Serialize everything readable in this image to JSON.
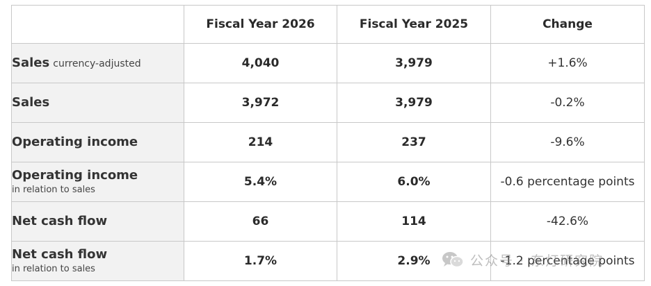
{
  "table": {
    "headers": [
      "",
      "Fiscal Year 2026",
      "Fiscal Year 2025",
      "Change"
    ],
    "rows": [
      {
        "label": "Sales",
        "inline_note": "currency-adjusted",
        "sub": "",
        "fy2026": "4,040",
        "fy2025": "3,979",
        "change": "+1.6%"
      },
      {
        "label": "Sales",
        "inline_note": "",
        "sub": "",
        "fy2026": "3,972",
        "fy2025": "3,979",
        "change": "-0.2%"
      },
      {
        "label": "Operating income",
        "inline_note": "",
        "sub": "",
        "fy2026": "214",
        "fy2025": "237",
        "change": "-9.6%"
      },
      {
        "label": "Operating income",
        "inline_note": "",
        "sub": "in relation to sales",
        "fy2026": "5.4%",
        "fy2025": "6.0%",
        "change": "-0.6 percentage points"
      },
      {
        "label": "Net cash flow",
        "inline_note": "",
        "sub": "",
        "fy2026": "66",
        "fy2025": "114",
        "change": "-42.6%"
      },
      {
        "label": "Net cash flow",
        "inline_note": "",
        "sub": "in relation to sales",
        "fy2026": "1.7%",
        "fy2025": "2.9%",
        "change": "-1.2 percentage points"
      }
    ]
  },
  "watermark": {
    "text": "公众号 · 东灯研究院",
    "icon": "wechat-icon"
  }
}
